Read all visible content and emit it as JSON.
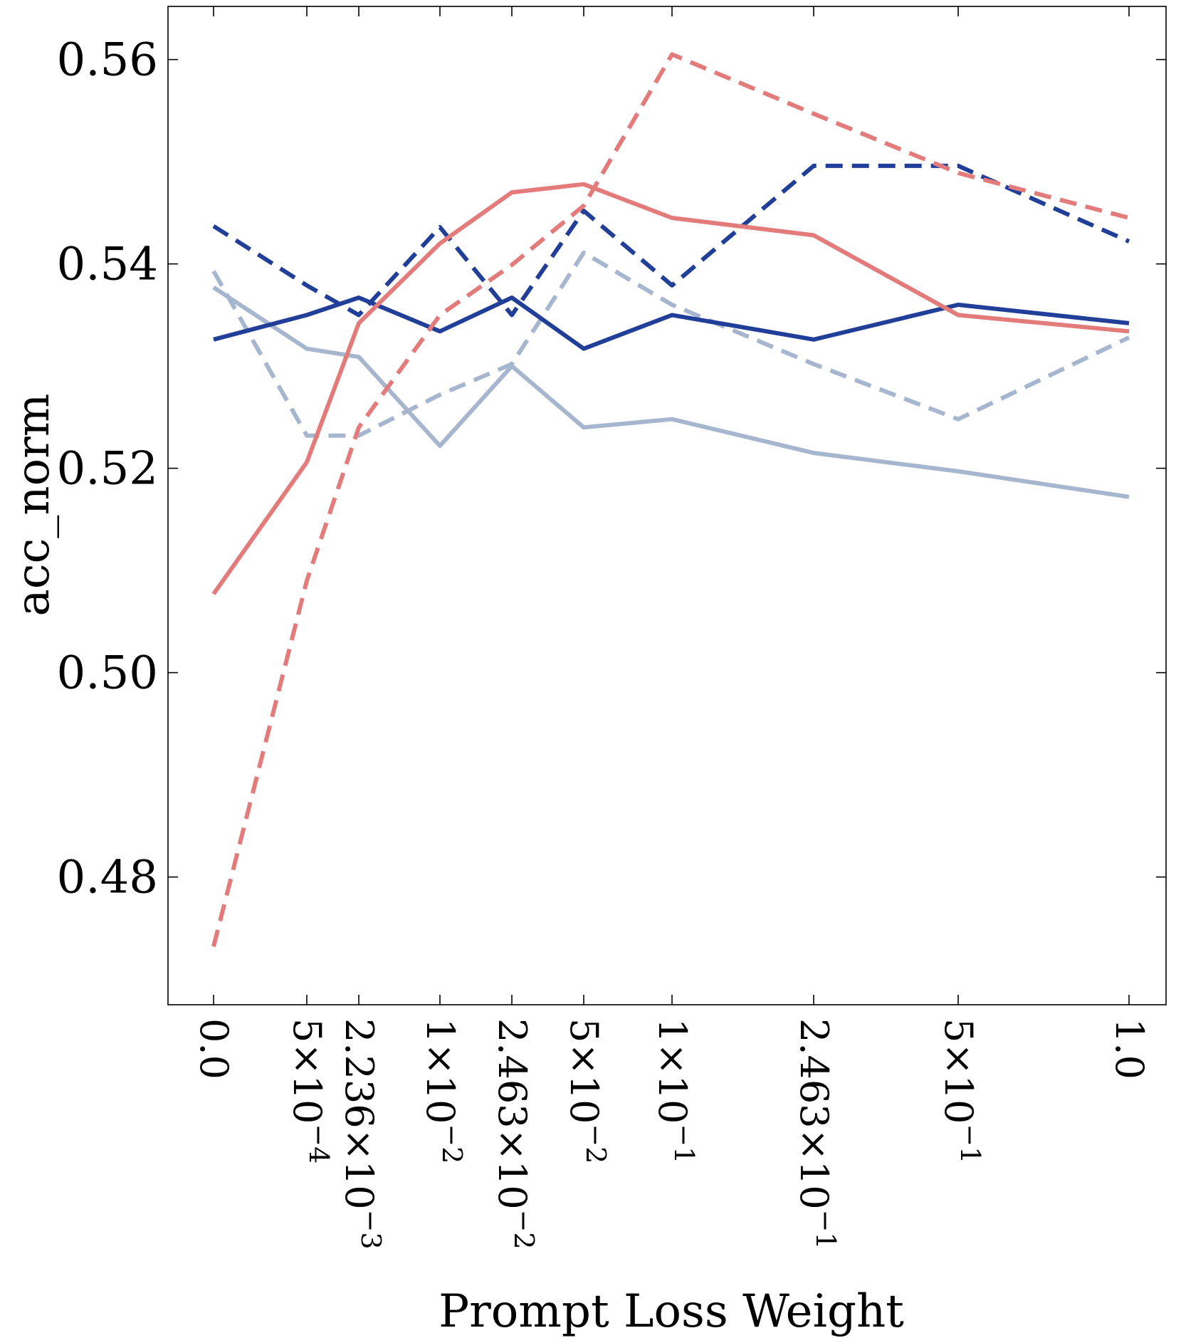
{
  "chart_data": {
    "type": "line",
    "title": "",
    "xlabel": "Prompt Loss Weight",
    "ylabel": "acc_norm",
    "ylim": [
      0.4675,
      0.5652
    ],
    "grid": false,
    "legend": "none",
    "categories": [
      "0.0",
      "5×10⁻⁴",
      "2.236×10⁻³",
      "1×10⁻²",
      "2.463×10⁻²",
      "5×10⁻²",
      "1×10⁻¹",
      "2.463×10⁻¹",
      "5×10⁻¹",
      "1.0"
    ],
    "x_labels": [
      {
        "m": "0.0",
        "e": ""
      },
      {
        "m": "5×10",
        "e": "−4"
      },
      {
        "m": "2.236×10",
        "e": "−3"
      },
      {
        "m": "1×10",
        "e": "−2"
      },
      {
        "m": "2.463×10",
        "e": "−2"
      },
      {
        "m": "5×10",
        "e": "−2"
      },
      {
        "m": "1×10",
        "e": "−1"
      },
      {
        "m": "2.463×10",
        "e": "−1"
      },
      {
        "m": "5×10",
        "e": "−1"
      },
      {
        "m": "1.0",
        "e": ""
      }
    ],
    "y_ticks": [
      {
        "value": 0.48,
        "label": "0.48"
      },
      {
        "value": 0.5,
        "label": "0.50"
      },
      {
        "value": 0.52,
        "label": "0.52"
      },
      {
        "value": 0.54,
        "label": "0.54"
      },
      {
        "value": 0.56,
        "label": "0.56"
      }
    ],
    "series": [
      {
        "name": "light-blue-dashed",
        "color": "#a7b6cf",
        "style": "dashed",
        "values": [
          0.5393,
          0.5232,
          0.5232,
          0.5272,
          0.5302,
          0.5411,
          0.536,
          0.5302,
          0.5248,
          0.5328
        ]
      },
      {
        "name": "light-blue-solid",
        "color": "#a7b6cf",
        "style": "solid",
        "values": [
          0.5377,
          0.5317,
          0.5309,
          0.5222,
          0.53,
          0.524,
          0.5248,
          0.5215,
          0.5197,
          0.5172
        ]
      },
      {
        "name": "dark-blue-dashed",
        "color": "#213f98",
        "style": "dashed",
        "values": [
          0.5437,
          0.5379,
          0.535,
          0.5436,
          0.535,
          0.5452,
          0.5379,
          0.5496,
          0.5496,
          0.5422
        ]
      },
      {
        "name": "dark-blue-solid",
        "color": "#213f98",
        "style": "solid",
        "values": [
          0.5326,
          0.535,
          0.5367,
          0.5334,
          0.5367,
          0.5317,
          0.535,
          0.5326,
          0.536,
          0.5342
        ]
      },
      {
        "name": "coral-dashed",
        "color": "#e47b7b",
        "style": "dashed",
        "values": [
          0.4732,
          0.509,
          0.524,
          0.535,
          0.5399,
          0.5457,
          0.5605,
          0.5547,
          0.5489,
          0.5445
        ]
      },
      {
        "name": "coral-solid",
        "color": "#e47b7b",
        "style": "solid",
        "values": [
          0.5077,
          0.5206,
          0.5342,
          0.542,
          0.547,
          0.5478,
          0.5445,
          0.5428,
          0.535,
          0.5334
        ]
      }
    ]
  }
}
